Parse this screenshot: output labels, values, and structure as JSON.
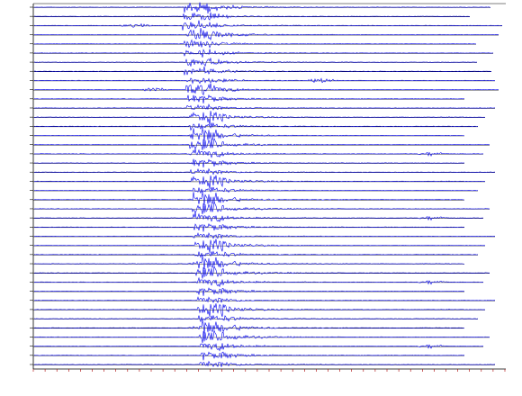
{
  "chart_data": {
    "type": "seismogram"
  }
}
